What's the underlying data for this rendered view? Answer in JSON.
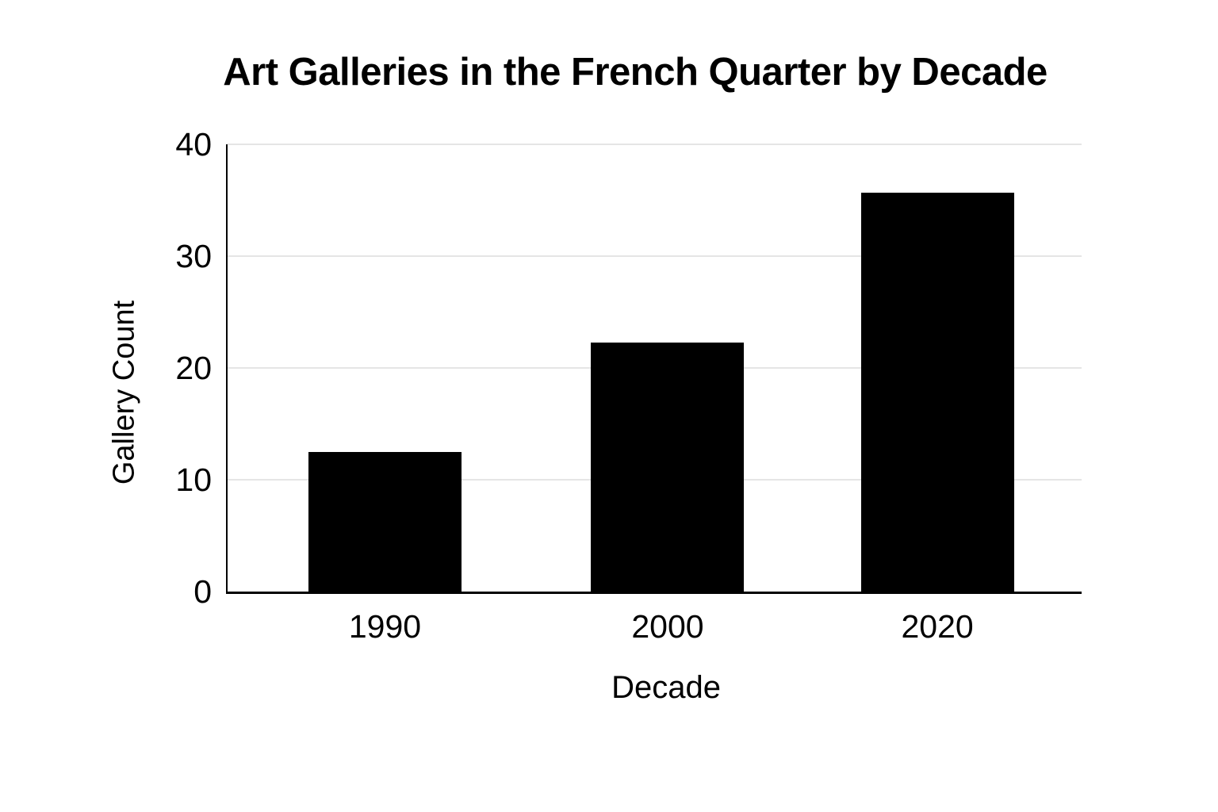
{
  "chart_data": {
    "type": "bar",
    "title": "Art Galleries in the French Quarter by Decade",
    "xlabel": "Decade",
    "ylabel": "Gallery Count",
    "categories": [
      "1990",
      "2000",
      "2020"
    ],
    "values": [
      12.5,
      22.3,
      35.7
    ],
    "ylim": [
      0,
      40
    ],
    "yticks": [
      0,
      10,
      20,
      30,
      40
    ],
    "grid": true,
    "legend": "none",
    "bar_color": "#000000",
    "gridline_color": "#e5e5e5",
    "axis_color": "#000000",
    "text_color": "#000000",
    "background_color": "#ffffff"
  }
}
